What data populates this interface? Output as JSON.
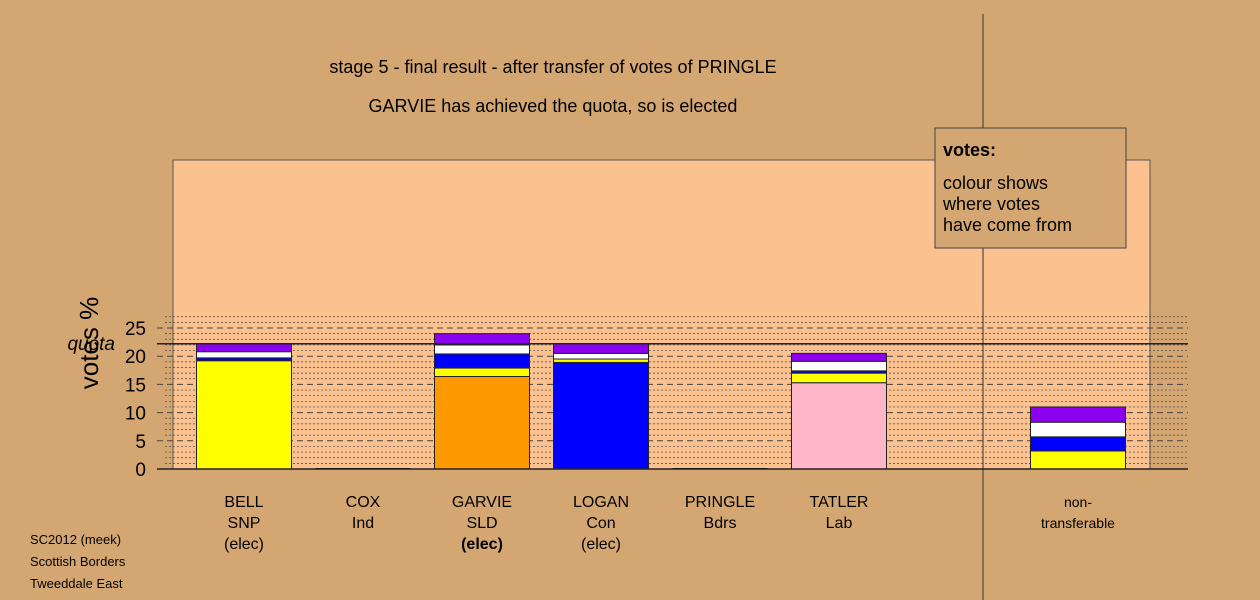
{
  "chart_data": {
    "type": "bar",
    "stacked": true,
    "title_line1": "stage 5 - final result - after transfer of votes of PRINGLE",
    "title_line2": "GARVIE has achieved the quota, so is elected",
    "ylabel": "votes %",
    "ylim": [
      0,
      27.5
    ],
    "yticks": [
      0,
      5,
      10,
      15,
      20,
      25
    ],
    "quota": 22.2,
    "quota_label": "quota",
    "grid": "dashed horizontal",
    "legend": {
      "position": "top-right",
      "title": "votes:",
      "lines": [
        "colour shows",
        "where votes",
        "have come from"
      ]
    },
    "categories": [
      {
        "name": "BELL",
        "party": "SNP",
        "status": "(elec)",
        "bold": false
      },
      {
        "name": "COX",
        "party": "Ind",
        "status": "",
        "bold": false
      },
      {
        "name": "GARVIE",
        "party": "SLD",
        "status": "(elec)",
        "bold": true
      },
      {
        "name": "LOGAN",
        "party": "Con",
        "status": "(elec)",
        "bold": false
      },
      {
        "name": "PRINGLE",
        "party": "Bdrs",
        "status": "",
        "bold": false
      },
      {
        "name": "TATLER",
        "party": "Lab",
        "status": "",
        "bold": false
      },
      {
        "name": "non-",
        "party": "transferable",
        "status": "",
        "bold": false
      }
    ],
    "stacks": [
      [
        {
          "color": "#ffff00",
          "value": 19.2
        },
        {
          "color": "#0000ff",
          "value": 0.5
        },
        {
          "color": "#ffffff",
          "value": 1.1
        },
        {
          "color": "#8b00ee",
          "value": 1.4
        }
      ],
      [],
      [
        {
          "color": "#ff9900",
          "value": 16.4
        },
        {
          "color": "#ffff00",
          "value": 1.5
        },
        {
          "color": "#0000ff",
          "value": 2.5
        },
        {
          "color": "#ffffff",
          "value": 1.6
        },
        {
          "color": "#8b00ee",
          "value": 2.0
        }
      ],
      [
        {
          "color": "#0000ff",
          "value": 18.9
        },
        {
          "color": "#ffff00",
          "value": 0.6
        },
        {
          "color": "#ffffff",
          "value": 1.0
        },
        {
          "color": "#8b00ee",
          "value": 1.7
        }
      ],
      [],
      [
        {
          "color": "#ffb6c8",
          "value": 15.3
        },
        {
          "color": "#ffff00",
          "value": 1.7
        },
        {
          "color": "#0000ff",
          "value": 0.4
        },
        {
          "color": "#ffffff",
          "value": 1.7
        },
        {
          "color": "#8b00ee",
          "value": 1.4
        }
      ],
      [
        {
          "color": "#ffff00",
          "value": 3.2
        },
        {
          "color": "#0000ff",
          "value": 2.5
        },
        {
          "color": "#ffffff",
          "value": 2.6
        },
        {
          "color": "#8b00ee",
          "value": 2.7
        }
      ]
    ]
  },
  "footer": {
    "line1": "SC2012 (meek)",
    "line2": "Scottish Borders",
    "line3": "Tweeddale East"
  },
  "colors": {
    "background": "#d4a772",
    "plot_area": "#fbc18f"
  }
}
